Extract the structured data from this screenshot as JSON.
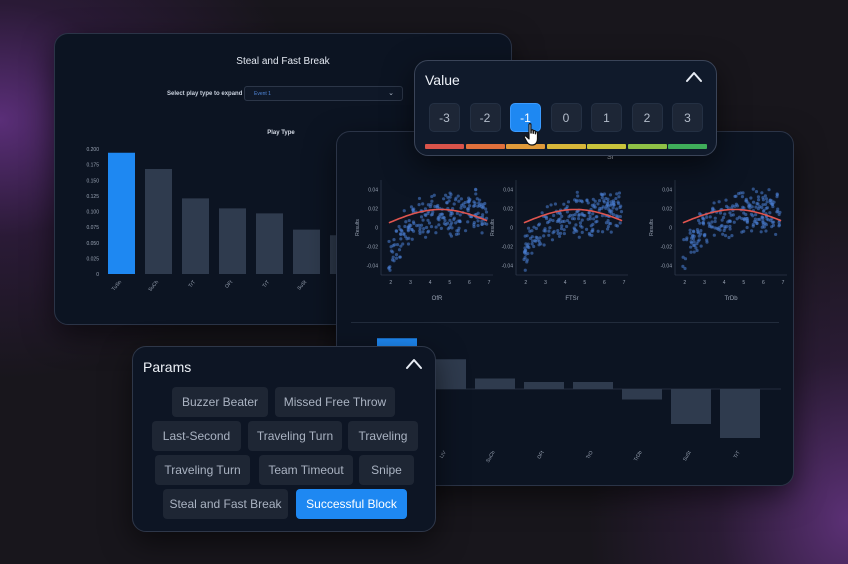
{
  "play_type_panel": {
    "title": "Steal and Fast Break",
    "select_label": "Select play type to expand",
    "select_value": "Event 1",
    "chart_data": {
      "type": "bar",
      "title": "Play Type",
      "categories": [
        "TuSn",
        "SuCh",
        "TrT",
        "OFt",
        "TrT",
        "SuSt",
        ""
      ],
      "values": [
        0.194,
        0.168,
        0.121,
        0.105,
        0.097,
        0.071,
        0.062
      ],
      "highlight_index": 0,
      "ylim": [
        0,
        0.2
      ],
      "yticks": [
        "0",
        "0.025",
        "0.050",
        "0.075",
        "0.100",
        "0.125",
        "0.150",
        "0.175",
        "0.200"
      ],
      "colors": {
        "highlight": "#1e88f2",
        "default": "#2f3b4e"
      }
    }
  },
  "results_panel": {
    "header_fragment": "Sr",
    "scatter_charts": [
      {
        "type": "scatter",
        "xlabel": "OfR",
        "ylabel": "Results",
        "xticks": [
          "2",
          "3",
          "4",
          "5",
          "6",
          "7"
        ],
        "yticks": [
          "0.04",
          "0.02",
          "0",
          "-0.02",
          "-0.04"
        ],
        "xlim": [
          1.5,
          7.2
        ],
        "ylim": [
          -0.05,
          0.05
        ],
        "trend_color": "#e0554f",
        "point_color": "#4a7fd6"
      },
      {
        "type": "scatter",
        "xlabel": "FTSr",
        "ylabel": "Results",
        "xticks": [
          "2",
          "3",
          "4",
          "5",
          "6",
          "7"
        ],
        "yticks": [
          "0.04",
          "0.02",
          "0",
          "-0.02",
          "-0.04"
        ],
        "xlim": [
          1.5,
          7.2
        ],
        "ylim": [
          -0.05,
          0.05
        ],
        "trend_color": "#e0554f",
        "point_color": "#4a7fd6"
      },
      {
        "type": "scatter",
        "xlabel": "TrDb",
        "ylabel": "Results",
        "xticks": [
          "2",
          "3",
          "4",
          "5",
          "6",
          "7"
        ],
        "yticks": [
          "0.04",
          "0.02",
          "0",
          "-0.02",
          "-0.04"
        ],
        "xlim": [
          1.5,
          7.2
        ],
        "ylim": [
          -0.05,
          0.05
        ],
        "trend_color": "#e0554f",
        "point_color": "#4a7fd6"
      }
    ],
    "diverging_chart": {
      "type": "bar",
      "categories": [
        "",
        "LtV",
        "SuCh",
        "OFt",
        "TrO",
        "TrDb",
        "SuSt",
        "TrT"
      ],
      "values": [
        0.145,
        0.085,
        0.03,
        0.02,
        0.02,
        -0.03,
        -0.1,
        -0.14
      ],
      "highlight_index": 0,
      "y_label_fragment": "0.0",
      "colors": {
        "highlight": "#1e88f2",
        "default": "#2f3b4e"
      }
    }
  },
  "value_panel": {
    "title": "Value",
    "options": [
      "-3",
      "-2",
      "-1",
      "0",
      "1",
      "2",
      "3"
    ],
    "selected": "-1",
    "scale_colors": [
      "#d9534a",
      "#e0703c",
      "#e09a3a",
      "#d8b73a",
      "#c9c43c",
      "#8fc146",
      "#3fae5a"
    ]
  },
  "params_panel": {
    "title": "Params",
    "chips": [
      [
        "Buzzer Beater",
        "Missed Free Throw"
      ],
      [
        "Last-Second",
        "Traveling Turn",
        "Traveling"
      ],
      [
        "Traveling Turn",
        "Team Timeout",
        "Snipe"
      ],
      [
        "Steal and Fast Break",
        "Successful Block"
      ]
    ],
    "selected": "Successful Block"
  },
  "icons": {
    "collapse": "chevron-up-icon",
    "cursor": "hand-pointer-icon",
    "dropdown": "chevron-down-icon"
  }
}
